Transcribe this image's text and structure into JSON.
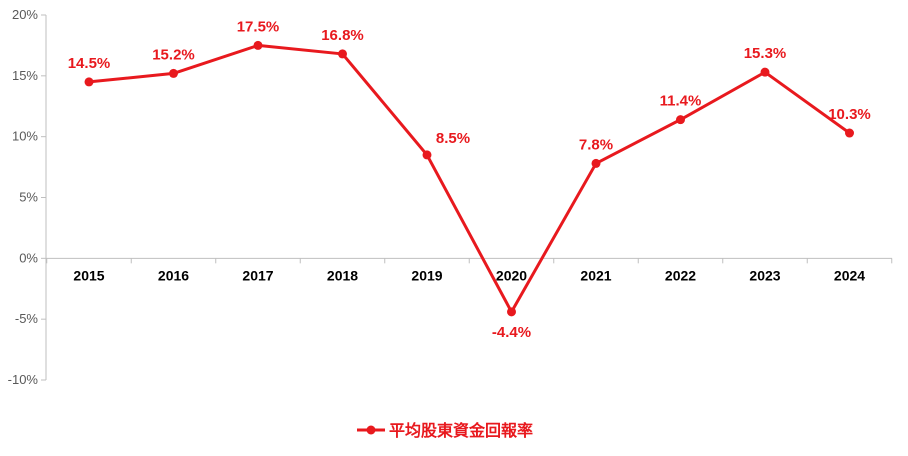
{
  "chart_data": {
    "type": "line",
    "x": [
      "2015",
      "2016",
      "2017",
      "2018",
      "2019",
      "2020",
      "2021",
      "2022",
      "2023",
      "2024"
    ],
    "series": [
      {
        "name": "平均股東資金回報率",
        "values": [
          14.5,
          15.2,
          17.5,
          16.8,
          8.5,
          -4.4,
          7.8,
          11.4,
          15.3,
          10.3
        ],
        "labels": [
          "14.5%",
          "15.2%",
          "17.5%",
          "16.8%",
          "8.5%",
          "-4.4%",
          "7.8%",
          "11.4%",
          "15.3%",
          "10.3%"
        ],
        "color": "#e8191e"
      }
    ],
    "yticks": [
      20,
      15,
      10,
      5,
      0,
      -5,
      -10
    ],
    "ytick_labels": [
      "20%",
      "15%",
      "10%",
      "5%",
      "0%",
      "-5%",
      "-10%"
    ],
    "ylim": [
      -10,
      20
    ],
    "grid": false,
    "legend_position": "bottom-center",
    "title": "",
    "xlabel": "",
    "ylabel": ""
  }
}
